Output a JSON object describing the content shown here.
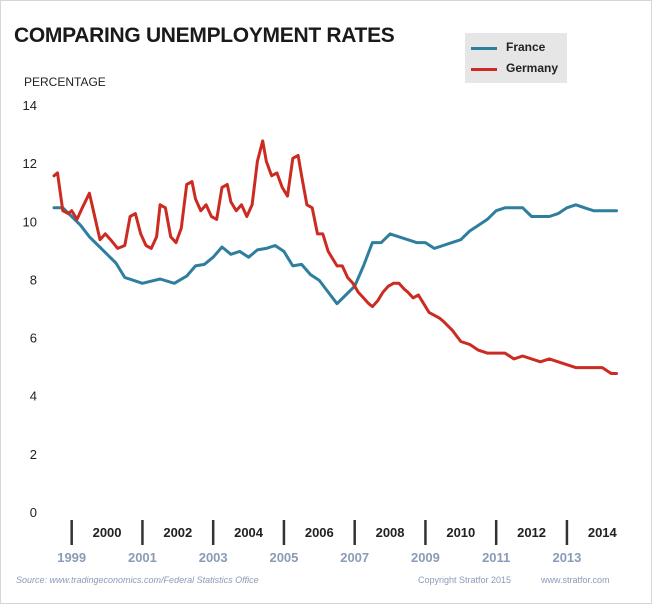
{
  "title": "COMPARING UNEMPLOYMENT RATES",
  "footer": {
    "source": "Source:  www.tradingeconomics.com/Federal Statistics Office",
    "copyright": "Copyright Stratfor 2015",
    "url": "www.stratfor.com"
  },
  "colors": {
    "france": "#2e7e9e",
    "germany": "#cc2b22",
    "axis_text": "#222222",
    "lower_year_text": "#8a9bb8",
    "legend_bg": "#e6e6e6"
  },
  "chart_data": {
    "type": "line",
    "title": "COMPARING UNEMPLOYMENT RATES",
    "ylabel": "PERCENTAGE",
    "xlabel": "",
    "ylim": [
      0,
      14
    ],
    "yticks": [
      0,
      2,
      4,
      6,
      8,
      10,
      12,
      14
    ],
    "xlim": [
      1999.0,
      2015.0
    ],
    "grid": false,
    "legend": "top-right",
    "year_labels_upper": [
      "2000",
      "2002",
      "2004",
      "2006",
      "2008",
      "2010",
      "2012",
      "2014"
    ],
    "year_labels_lower": [
      "1999",
      "2001",
      "2003",
      "2005",
      "2007",
      "2009",
      "2011",
      "2013"
    ],
    "series": [
      {
        "name": "France",
        "x": [
          1999.0,
          1999.25,
          1999.5,
          1999.75,
          2000.0,
          2000.25,
          2000.5,
          2000.75,
          2001.0,
          2001.5,
          2002.0,
          2002.4,
          2002.75,
          2003.0,
          2003.25,
          2003.5,
          2003.75,
          2004.0,
          2004.25,
          2004.5,
          2004.75,
          2005.0,
          2005.25,
          2005.5,
          2005.75,
          2006.0,
          2006.25,
          2006.5,
          2006.75,
          2007.0,
          2007.25,
          2007.5,
          2007.75,
          2008.0,
          2008.25,
          2008.5,
          2008.75,
          2009.0,
          2009.25,
          2009.5,
          2009.75,
          2010.0,
          2010.25,
          2010.5,
          2010.75,
          2011.0,
          2011.25,
          2011.5,
          2011.75,
          2012.0,
          2012.25,
          2012.5,
          2012.75,
          2013.0,
          2013.25,
          2013.5,
          2013.75,
          2014.0,
          2014.25,
          2014.5,
          2014.75,
          2014.9
        ],
        "values": [
          10.5,
          10.5,
          10.2,
          9.9,
          9.5,
          9.2,
          8.9,
          8.6,
          8.1,
          7.9,
          8.05,
          7.9,
          8.15,
          8.5,
          8.55,
          8.8,
          9.15,
          8.9,
          9.0,
          8.8,
          9.05,
          9.1,
          9.2,
          9.0,
          8.5,
          8.55,
          8.2,
          8.0,
          7.6,
          7.2,
          7.5,
          7.8,
          8.5,
          9.3,
          9.3,
          9.6,
          9.5,
          9.4,
          9.3,
          9.3,
          9.1,
          9.2,
          9.3,
          9.4,
          9.7,
          9.9,
          10.1,
          10.4,
          10.5,
          10.5,
          10.5,
          10.2,
          10.2,
          10.2,
          10.3,
          10.5,
          10.6,
          10.5,
          10.4,
          10.4,
          10.4,
          10.4
        ]
      },
      {
        "name": "Germany",
        "x": [
          1999.0,
          1999.1,
          1999.25,
          1999.4,
          1999.5,
          1999.65,
          1999.8,
          2000.0,
          2000.15,
          2000.3,
          2000.45,
          2000.6,
          2000.8,
          2001.0,
          2001.15,
          2001.3,
          2001.45,
          2001.6,
          2001.75,
          2001.9,
          2002.0,
          2002.15,
          2002.3,
          2002.45,
          2002.6,
          2002.75,
          2002.9,
          2003.0,
          2003.15,
          2003.3,
          2003.45,
          2003.6,
          2003.75,
          2003.9,
          2004.0,
          2004.15,
          2004.3,
          2004.45,
          2004.6,
          2004.75,
          2004.9,
          2005.0,
          2005.15,
          2005.3,
          2005.45,
          2005.6,
          2005.75,
          2005.9,
          2006.0,
          2006.15,
          2006.3,
          2006.45,
          2006.6,
          2006.75,
          2006.9,
          2007.0,
          2007.15,
          2007.3,
          2007.45,
          2007.6,
          2007.75,
          2007.9,
          2008.0,
          2008.15,
          2008.3,
          2008.45,
          2008.6,
          2008.75,
          2008.9,
          2009.0,
          2009.15,
          2009.3,
          2009.45,
          2009.6,
          2009.75,
          2009.9,
          2010.0,
          2010.25,
          2010.5,
          2010.75,
          2011.0,
          2011.25,
          2011.5,
          2011.75,
          2012.0,
          2012.25,
          2012.5,
          2012.75,
          2013.0,
          2013.25,
          2013.5,
          2013.75,
          2014.0,
          2014.25,
          2014.5,
          2014.75,
          2014.9
        ],
        "values": [
          11.6,
          11.7,
          10.4,
          10.3,
          10.4,
          10.1,
          10.5,
          11.0,
          10.2,
          9.4,
          9.6,
          9.4,
          9.1,
          9.2,
          10.2,
          10.3,
          9.6,
          9.2,
          9.1,
          9.5,
          10.6,
          10.5,
          9.5,
          9.3,
          9.8,
          11.3,
          11.4,
          10.8,
          10.4,
          10.6,
          10.2,
          10.1,
          11.2,
          11.3,
          10.7,
          10.4,
          10.6,
          10.2,
          10.6,
          12.1,
          12.8,
          12.1,
          11.6,
          11.7,
          11.2,
          10.9,
          12.2,
          12.3,
          11.6,
          10.6,
          10.5,
          9.6,
          9.6,
          9.0,
          8.7,
          8.5,
          8.5,
          8.1,
          7.9,
          7.6,
          7.4,
          7.2,
          7.1,
          7.3,
          7.6,
          7.8,
          7.9,
          7.9,
          7.7,
          7.6,
          7.4,
          7.5,
          7.2,
          6.9,
          6.8,
          6.7,
          6.6,
          6.3,
          5.9,
          5.8,
          5.6,
          5.5,
          5.5,
          5.5,
          5.3,
          5.4,
          5.3,
          5.2,
          5.3,
          5.2,
          5.1,
          5.0,
          5.0,
          5.0,
          5.0,
          4.8,
          4.8
        ]
      }
    ]
  }
}
